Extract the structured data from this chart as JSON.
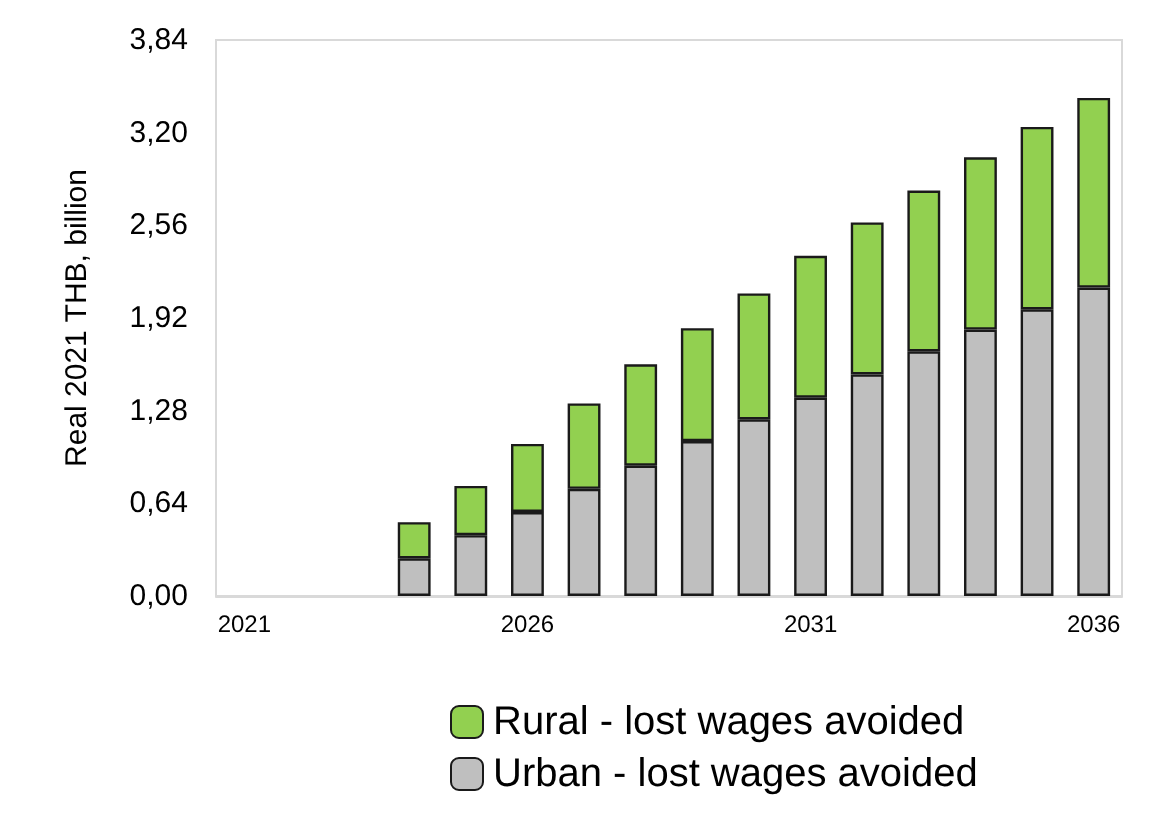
{
  "chart_data": {
    "type": "bar",
    "stacked": true,
    "ylabel": "Real 2021 THB, billion",
    "categories": [
      "2021",
      null,
      null,
      null,
      null,
      "2026",
      null,
      null,
      null,
      null,
      "2031",
      null,
      null,
      null,
      null,
      "2036"
    ],
    "series": [
      {
        "name": "Urban - lost wages avoided",
        "color": "#bfbfbf",
        "values": [
          null,
          null,
          null,
          0.26,
          0.42,
          0.58,
          0.74,
          0.9,
          1.07,
          1.22,
          1.37,
          1.53,
          1.69,
          1.84,
          1.98,
          2.13
        ]
      },
      {
        "name": "Rural - lost wages avoided",
        "color": "#92d050",
        "values": [
          null,
          null,
          null,
          0.25,
          0.34,
          0.47,
          0.59,
          0.7,
          0.78,
          0.87,
          0.98,
          1.05,
          1.11,
          1.19,
          1.26,
          1.31
        ]
      }
    ],
    "ylim": [
      0,
      3.84
    ],
    "yticks": [
      {
        "value": 0,
        "label": "0,00"
      },
      {
        "value": 0.64,
        "label": "0,64"
      },
      {
        "value": 1.28,
        "label": "1,28"
      },
      {
        "value": 1.92,
        "label": "1,92"
      },
      {
        "value": 2.56,
        "label": "2,56"
      },
      {
        "value": 3.2,
        "label": "3,20"
      },
      {
        "value": 3.84,
        "label": "3,84"
      }
    ],
    "grid": false,
    "legend": "bottom"
  }
}
